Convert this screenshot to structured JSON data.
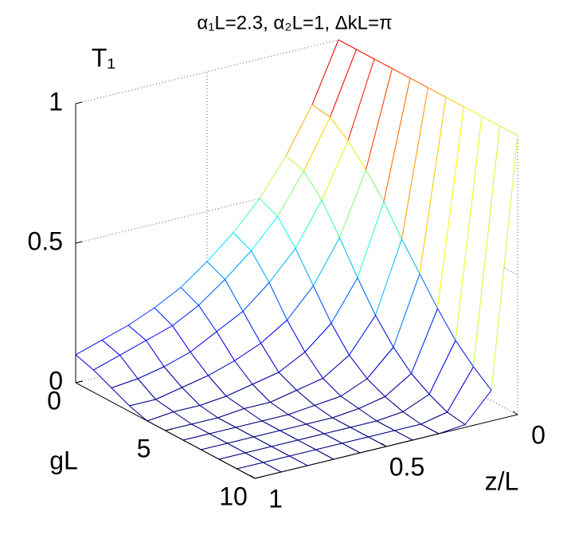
{
  "chart_data": {
    "type": "surface",
    "title": "α₁L=2.3, α₂L=1,  ΔkL=π",
    "xlabel": "z/L",
    "ylabel": "gL",
    "zlabel": "T₁",
    "x": [
      0,
      0.1,
      0.2,
      0.3,
      0.4,
      0.5,
      0.6,
      0.7,
      0.8,
      0.9,
      1
    ],
    "y": [
      0,
      1,
      2,
      3,
      4,
      5,
      6,
      7,
      8,
      9,
      10
    ],
    "z": [
      [
        1,
        0.79,
        0.63,
        0.5,
        0.4,
        0.32,
        0.25,
        0.2,
        0.16,
        0.13,
        0.1
      ],
      [
        1,
        0.78,
        0.61,
        0.47,
        0.37,
        0.29,
        0.22,
        0.17,
        0.14,
        0.11,
        0.08
      ],
      [
        1,
        0.73,
        0.54,
        0.39,
        0.29,
        0.21,
        0.16,
        0.11,
        0.08,
        0.06,
        0.05
      ],
      [
        1,
        0.66,
        0.44,
        0.29,
        0.19,
        0.13,
        0.09,
        0.06,
        0.04,
        0.02,
        0.02
      ],
      [
        1,
        0.58,
        0.33,
        0.19,
        0.11,
        0.06,
        0.04,
        0.02,
        0.01,
        0.01,
        0
      ],
      [
        1,
        0.48,
        0.23,
        0.11,
        0.05,
        0.03,
        0.01,
        0.01,
        0,
        0,
        0
      ],
      [
        1,
        0.39,
        0.15,
        0.06,
        0.02,
        0.01,
        0,
        0,
        0,
        0,
        0
      ],
      [
        1,
        0.3,
        0.09,
        0.03,
        0.01,
        0,
        0,
        0,
        0,
        0,
        0
      ],
      [
        1,
        0.22,
        0.05,
        0.01,
        0,
        0,
        0,
        0,
        0,
        0,
        0
      ],
      [
        1,
        0.16,
        0.02,
        0,
        0,
        0,
        0,
        0,
        0,
        0,
        0
      ],
      [
        1,
        0.11,
        0.01,
        0,
        0,
        0,
        0,
        0,
        0,
        0,
        0
      ]
    ],
    "xlim": [
      0,
      1
    ],
    "ylim": [
      0,
      10
    ],
    "zlim": [
      0,
      1
    ],
    "xticks": [
      0,
      0.5,
      1
    ],
    "yticks": [
      0,
      5,
      10
    ],
    "zticks": [
      0,
      0.5,
      1
    ],
    "colormap": "jet",
    "grid": true
  }
}
